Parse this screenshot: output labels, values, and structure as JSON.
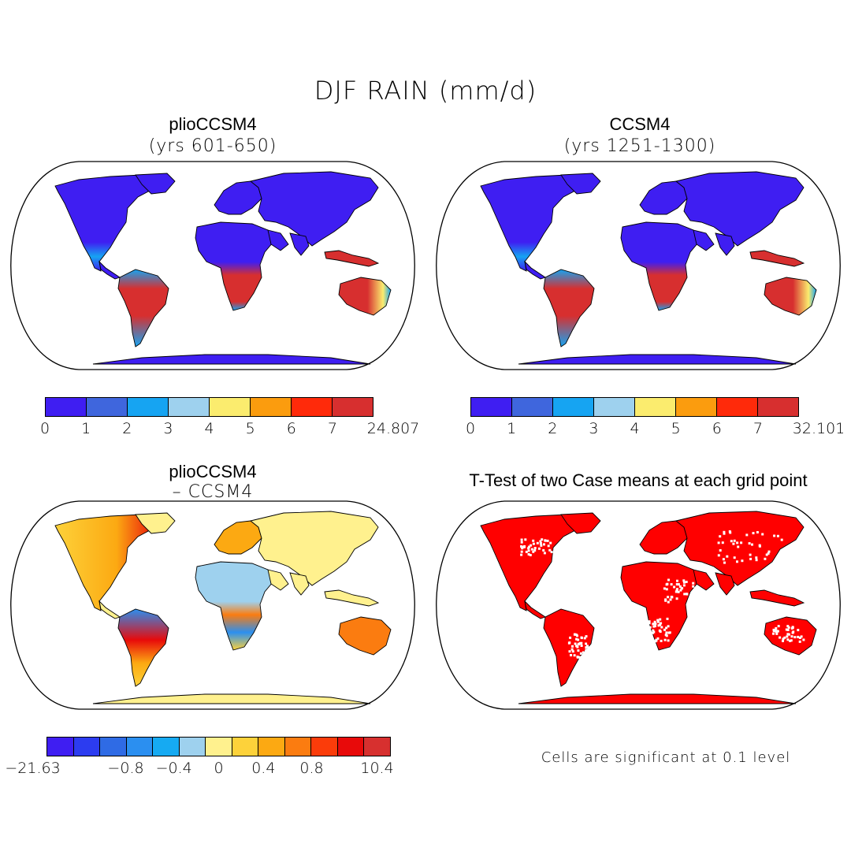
{
  "figure_title": "DJF RAIN (mm/d)",
  "panels": {
    "top_left": {
      "title": "plioCCSM4",
      "subtitle": "(yrs 601-650)"
    },
    "top_right": {
      "title": "CCSM4",
      "subtitle": "(yrs 1251-1300)"
    },
    "bottom_left": {
      "title": "plioCCSM4",
      "subtitle": "– CCSM4"
    },
    "bottom_right": {
      "title": "T-Test of two Case means at each grid point",
      "note": "Cells are significant at 0.1 level"
    }
  },
  "colorbars": {
    "top_left": {
      "colors": [
        "#3f1ef2",
        "#3f66dd",
        "#16a4f2",
        "#9ed1ee",
        "#fbec6e",
        "#fb9c0e",
        "#ff2a0a",
        "#d72f2f"
      ],
      "labels": [
        "0",
        "1",
        "2",
        "3",
        "4",
        "5",
        "6",
        "7",
        "24.807"
      ]
    },
    "top_right": {
      "colors": [
        "#3f1ef2",
        "#3f66dd",
        "#16a4f2",
        "#9ed1ee",
        "#fbec6e",
        "#fb9c0e",
        "#ff2a0a",
        "#d72f2f"
      ],
      "labels": [
        "0",
        "1",
        "2",
        "3",
        "4",
        "5",
        "6",
        "7",
        "32.101"
      ]
    },
    "bottom_left": {
      "colors": [
        "#3f1ef2",
        "#2c3cf0",
        "#2f6be5",
        "#2b8ff0",
        "#16aaf2",
        "#9ed1ee",
        "#fff18e",
        "#fdd23a",
        "#fca912",
        "#fb7c10",
        "#fb3c0a",
        "#e80a0a",
        "#d7302f"
      ],
      "labels": [
        "−21.63",
        "−0.8",
        "−0.4",
        "0",
        "0.4",
        "0.8",
        "10.4"
      ]
    }
  },
  "map_colors": {
    "ocean": "#ffffff",
    "outline": "#000000",
    "low": "#3f1ef2",
    "mid": "#16a4f2",
    "high": "#d72f2f",
    "diff_base": "#fff18e",
    "significant": "#ff0000"
  }
}
